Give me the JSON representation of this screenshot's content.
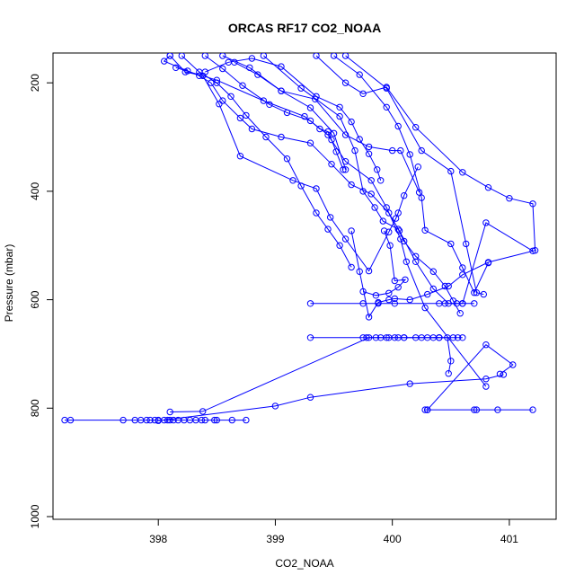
{
  "chart_data": {
    "type": "line",
    "title": "ORCAS RF17 CO2_NOAA",
    "xlabel": "CO2_NOAA",
    "ylabel": "Pressure (mbar)",
    "xlim": [
      397.1,
      401.4
    ],
    "ylim": [
      1005,
      145
    ],
    "y_inverted": true,
    "x_ticks": [
      398,
      399,
      400,
      401
    ],
    "y_ticks": [
      200,
      400,
      600,
      800,
      1000
    ],
    "grid": false,
    "color": "#0000ff",
    "marker": "open-circle",
    "series": [
      {
        "x": [
          397.2,
          397.25,
          397.7,
          397.8,
          397.85,
          397.9,
          397.93,
          397.97,
          398.0,
          398.05,
          398.08,
          398.1,
          398.13,
          398.17,
          398.22,
          398.27,
          398.32,
          398.37,
          398.4,
          398.48,
          398.5,
          398.63,
          398.75
        ],
        "y": [
          822,
          822,
          822,
          822,
          822,
          822,
          822,
          822,
          822,
          822,
          822,
          822,
          822,
          822,
          822,
          822,
          822,
          822,
          822,
          822,
          822,
          822,
          822
        ]
      },
      {
        "x": [
          398.1,
          398.38,
          399.8,
          400.1,
          400.4
        ],
        "y": [
          807,
          806,
          670,
          670,
          670
        ]
      },
      {
        "x": [
          398.0,
          399.0,
          399.3,
          400.15,
          400.8,
          400.95
        ],
        "y": [
          823,
          796,
          780,
          755,
          746,
          738
        ]
      },
      {
        "x": [
          400.28,
          400.3,
          400.7,
          400.72,
          400.9,
          401.2
        ],
        "y": [
          803,
          803,
          803,
          803,
          803,
          803
        ]
      },
      {
        "x": [
          400.3,
          400.8,
          401.03,
          400.92
        ],
        "y": [
          803,
          683,
          720,
          737
        ]
      },
      {
        "x": [
          400.48,
          400.5,
          400.47,
          400.4,
          400.35
        ],
        "y": [
          736,
          713,
          670,
          670,
          670
        ]
      },
      {
        "x": [
          399.3,
          399.75,
          399.88,
          400.02,
          400.4,
          400.45,
          400.55,
          400.6,
          400.7
        ],
        "y": [
          607,
          607,
          607,
          607,
          607,
          607,
          607,
          607,
          607
        ]
      },
      {
        "x": [
          399.3,
          399.75,
          399.78,
          399.86,
          399.9,
          399.95,
          399.97,
          400.02,
          400.05,
          400.1,
          400.2,
          400.25,
          400.3,
          400.4,
          400.52,
          400.56,
          400.6
        ],
        "y": [
          670,
          670,
          670,
          670,
          670,
          670,
          670,
          670,
          670,
          670,
          670,
          670,
          670,
          670,
          670,
          670,
          670
        ]
      },
      {
        "x": [
          398.15,
          398.5,
          398.9,
          399.25,
          399.45,
          399.6,
          399.82,
          399.95,
          400.07,
          400.12,
          400.28,
          400.8
        ],
        "y": [
          172,
          195,
          233,
          262,
          296,
          345,
          380,
          430,
          488,
          530,
          615,
          760
        ]
      },
      {
        "x": [
          398.1,
          398.23,
          398.38,
          398.52,
          398.7,
          399.15,
          399.35,
          399.47,
          399.6,
          399.8,
          399.97,
          400.03,
          400.05,
          400.1,
          400.22
        ],
        "y": [
          150,
          180,
          187,
          239,
          335,
          380,
          395,
          448,
          488,
          547,
          475,
          450,
          440,
          408,
          355
        ]
      },
      {
        "x": [
          398.4,
          398.55,
          398.72,
          398.95,
          399.1,
          399.3,
          399.38,
          399.45,
          399.48,
          399.52,
          399.58
        ],
        "y": [
          150,
          174,
          205,
          240,
          255,
          270,
          285,
          290,
          305,
          327,
          360
        ]
      },
      {
        "x": [
          398.1,
          398.05,
          398.25,
          398.35,
          398.45,
          398.55,
          398.7,
          398.8,
          399.05,
          399.3,
          399.48,
          399.65,
          399.82,
          399.97,
          400.06,
          400.2,
          400.35,
          400.48,
          400.6
        ],
        "y": [
          150,
          160,
          178,
          187,
          200,
          233,
          265,
          285,
          300,
          311,
          350,
          388,
          405,
          440,
          473,
          530,
          580,
          607,
          607
        ]
      },
      {
        "x": [
          398.2,
          398.35,
          398.5,
          398.62,
          398.75,
          398.92,
          399.1,
          399.22,
          399.35,
          399.45,
          399.55,
          399.65
        ],
        "y": [
          150,
          180,
          200,
          225,
          260,
          300,
          340,
          390,
          440,
          470,
          500,
          540
        ]
      },
      {
        "x": [
          398.65,
          398.85,
          399.05,
          399.3,
          399.5,
          399.6
        ],
        "y": [
          162,
          185,
          215,
          246,
          293,
          360
        ]
      },
      {
        "x": [
          398.4,
          398.6,
          398.8,
          399.05,
          399.35,
          399.55,
          399.65,
          399.72,
          399.8,
          399.87,
          399.9
        ],
        "y": [
          180,
          162,
          155,
          170,
          225,
          245,
          272,
          304,
          331,
          360,
          380
        ]
      },
      {
        "x": [
          398.55,
          398.78,
          399.05,
          399.34,
          399.6,
          399.8,
          400.0,
          400.07,
          400.23
        ],
        "y": [
          150,
          172,
          215,
          230,
          296,
          318,
          325,
          325,
          402
        ]
      },
      {
        "x": [
          398.9,
          399.22,
          399.55,
          399.68,
          399.75,
          399.85,
          399.92,
          400.05,
          400.1,
          400.2,
          400.35,
          400.45,
          400.52,
          400.58
        ],
        "y": [
          150,
          210,
          262,
          325,
          400,
          430,
          455,
          470,
          492,
          520,
          548,
          575,
          602,
          625
        ]
      },
      {
        "x": [
          399.35,
          399.6,
          399.75,
          399.95,
          400.2,
          400.6,
          400.82,
          401.0,
          401.2,
          401.22,
          400.82,
          400.6,
          400.48,
          400.3,
          400.15,
          400.02,
          399.97,
          399.88,
          399.8,
          399.72,
          399.65
        ],
        "y": [
          150,
          200,
          220,
          208,
          282,
          365,
          393,
          413,
          423,
          509,
          531,
          554,
          575,
          590,
          600,
          598,
          600,
          605,
          632,
          548,
          473
        ]
      },
      {
        "x": [
          399.6,
          399.95,
          400.25,
          400.5,
          400.63,
          400.72,
          400.78
        ],
        "y": [
          150,
          210,
          325,
          363,
          497,
          587,
          590
        ]
      },
      {
        "x": [
          399.5,
          399.72,
          399.95,
          400.05,
          400.15,
          400.25,
          400.28,
          400.5,
          400.6,
          400.7,
          400.82
        ],
        "y": [
          150,
          185,
          245,
          280,
          332,
          412,
          472,
          497,
          541,
          587,
          532
        ]
      },
      {
        "x": [
          400.6,
          400.8,
          401.2
        ],
        "y": [
          607,
          458,
          510
        ]
      },
      {
        "x": [
          399.75,
          399.86,
          399.97,
          400.05,
          400.11,
          400.02,
          399.98,
          399.93
        ],
        "y": [
          585,
          592,
          588,
          577,
          563,
          565,
          500,
          473
        ]
      }
    ]
  }
}
